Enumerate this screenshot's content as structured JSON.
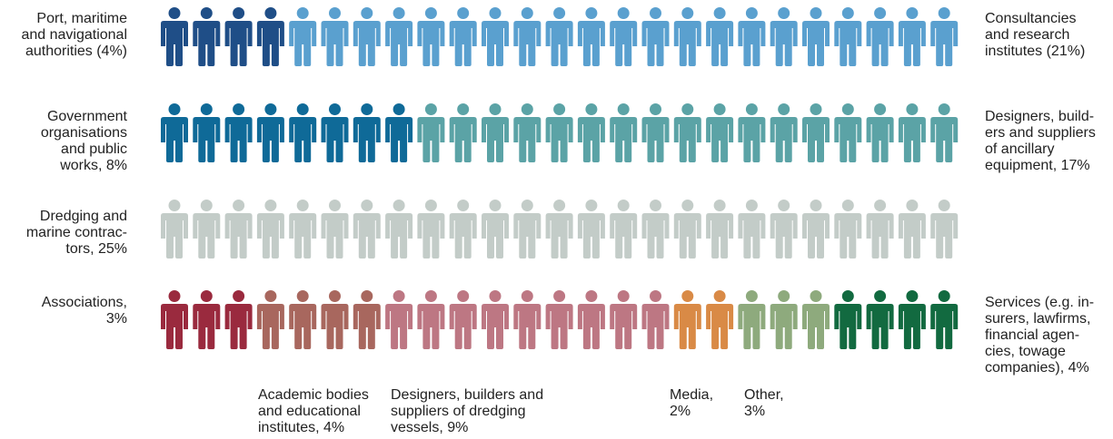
{
  "chart_data": {
    "type": "pictogram",
    "icon": "person-icon",
    "rows": [
      {
        "segments": [
          {
            "label": "Port, maritime\nand navigational\nauthorities (4%)",
            "value": 4,
            "count": 4,
            "color": "#1f4e87"
          },
          {
            "label": "Consultancies\nand research\ninstitutes (21%)",
            "value": 21,
            "count": 21,
            "color": "#5aa0cf"
          }
        ]
      },
      {
        "segments": [
          {
            "label": "Government\norganisations\nand public\nworks, 8%",
            "value": 8,
            "count": 8,
            "color": "#0f6a98"
          },
          {
            "label": "Designers, build-\ners and suppliers\nof ancillary\nequipment, 17%",
            "value": 17,
            "count": 17,
            "color": "#5ba3a6"
          }
        ]
      },
      {
        "segments": [
          {
            "label": "Dredging and\nmarine contrac-\ntors, 25%",
            "value": 25,
            "count": 25,
            "color": "#c3ccc8"
          }
        ]
      },
      {
        "segments": [
          {
            "label": "Associations,\n3%",
            "value": 3,
            "count": 3,
            "color": "#9a2a3e"
          },
          {
            "label": "Academic bodies\nand educational\ninstitutes, 4%",
            "value": 4,
            "count": 4,
            "color": "#a8675e"
          },
          {
            "label": "Designers, builders and\nsuppliers of dredging\nvessels, 9%",
            "value": 9,
            "count": 9,
            "color": "#bd7783"
          },
          {
            "label": "Media,\n2%",
            "value": 2,
            "count": 2,
            "color": "#d98a46"
          },
          {
            "label": "Other,\n3%",
            "value": 3,
            "count": 3,
            "color": "#8eaa7d"
          },
          {
            "label": "Services (e.g. in-\nsurers, lawfirms,\nfinancial agen-\ncies, towage\ncompanies), 4%",
            "value": 4,
            "count": 4,
            "color": "#126a40"
          }
        ]
      }
    ]
  }
}
